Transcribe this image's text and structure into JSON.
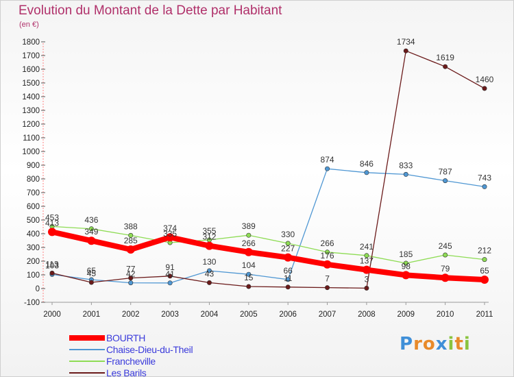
{
  "chart_data": {
    "type": "line",
    "title": "Evolution du Montant de la Dette par Habitant",
    "subtitle": "(en €)",
    "xlabel": "",
    "ylabel": "",
    "x": [
      "2000",
      "2001",
      "2002",
      "2003",
      "2004",
      "2005",
      "2006",
      "2007",
      "2008",
      "2009",
      "2010",
      "2011"
    ],
    "ylim": [
      -100,
      1800
    ],
    "yticks": [
      -100,
      0,
      100,
      200,
      300,
      400,
      500,
      600,
      700,
      800,
      900,
      1000,
      1100,
      1200,
      1300,
      1400,
      1500,
      1600,
      1700,
      1800
    ],
    "grid": false,
    "legend": "bottom-left",
    "series": [
      {
        "name": "BOURTH",
        "color": "#ff0000",
        "values": [
          413,
          349,
          285,
          374,
          312,
          266,
          227,
          176,
          137,
          98,
          79,
          65
        ]
      },
      {
        "name": "Chaise-Dieu-du-Theil",
        "color": "#4f97d3",
        "values": [
          103,
          65,
          42,
          41,
          130,
          104,
          66,
          874,
          846,
          833,
          787,
          743
        ]
      },
      {
        "name": "Francheville",
        "color": "#8edc54",
        "values": [
          453,
          436,
          388,
          335,
          355,
          389,
          330,
          266,
          241,
          185,
          245,
          212
        ]
      },
      {
        "name": "Les Barils",
        "color": "#6b1a1a",
        "values": [
          113,
          45,
          77,
          91,
          43,
          15,
          11,
          7,
          3,
          1734,
          1619,
          1460
        ]
      }
    ]
  },
  "logo": {
    "letters": [
      "P",
      "r",
      "o",
      "x",
      "i",
      "t",
      "i"
    ],
    "colors": [
      "#3f8fd8",
      "#e88a2a",
      "#e88a2a",
      "#3f8fd8",
      "#8ac43f",
      "#e88a2a",
      "#8ac43f"
    ]
  }
}
